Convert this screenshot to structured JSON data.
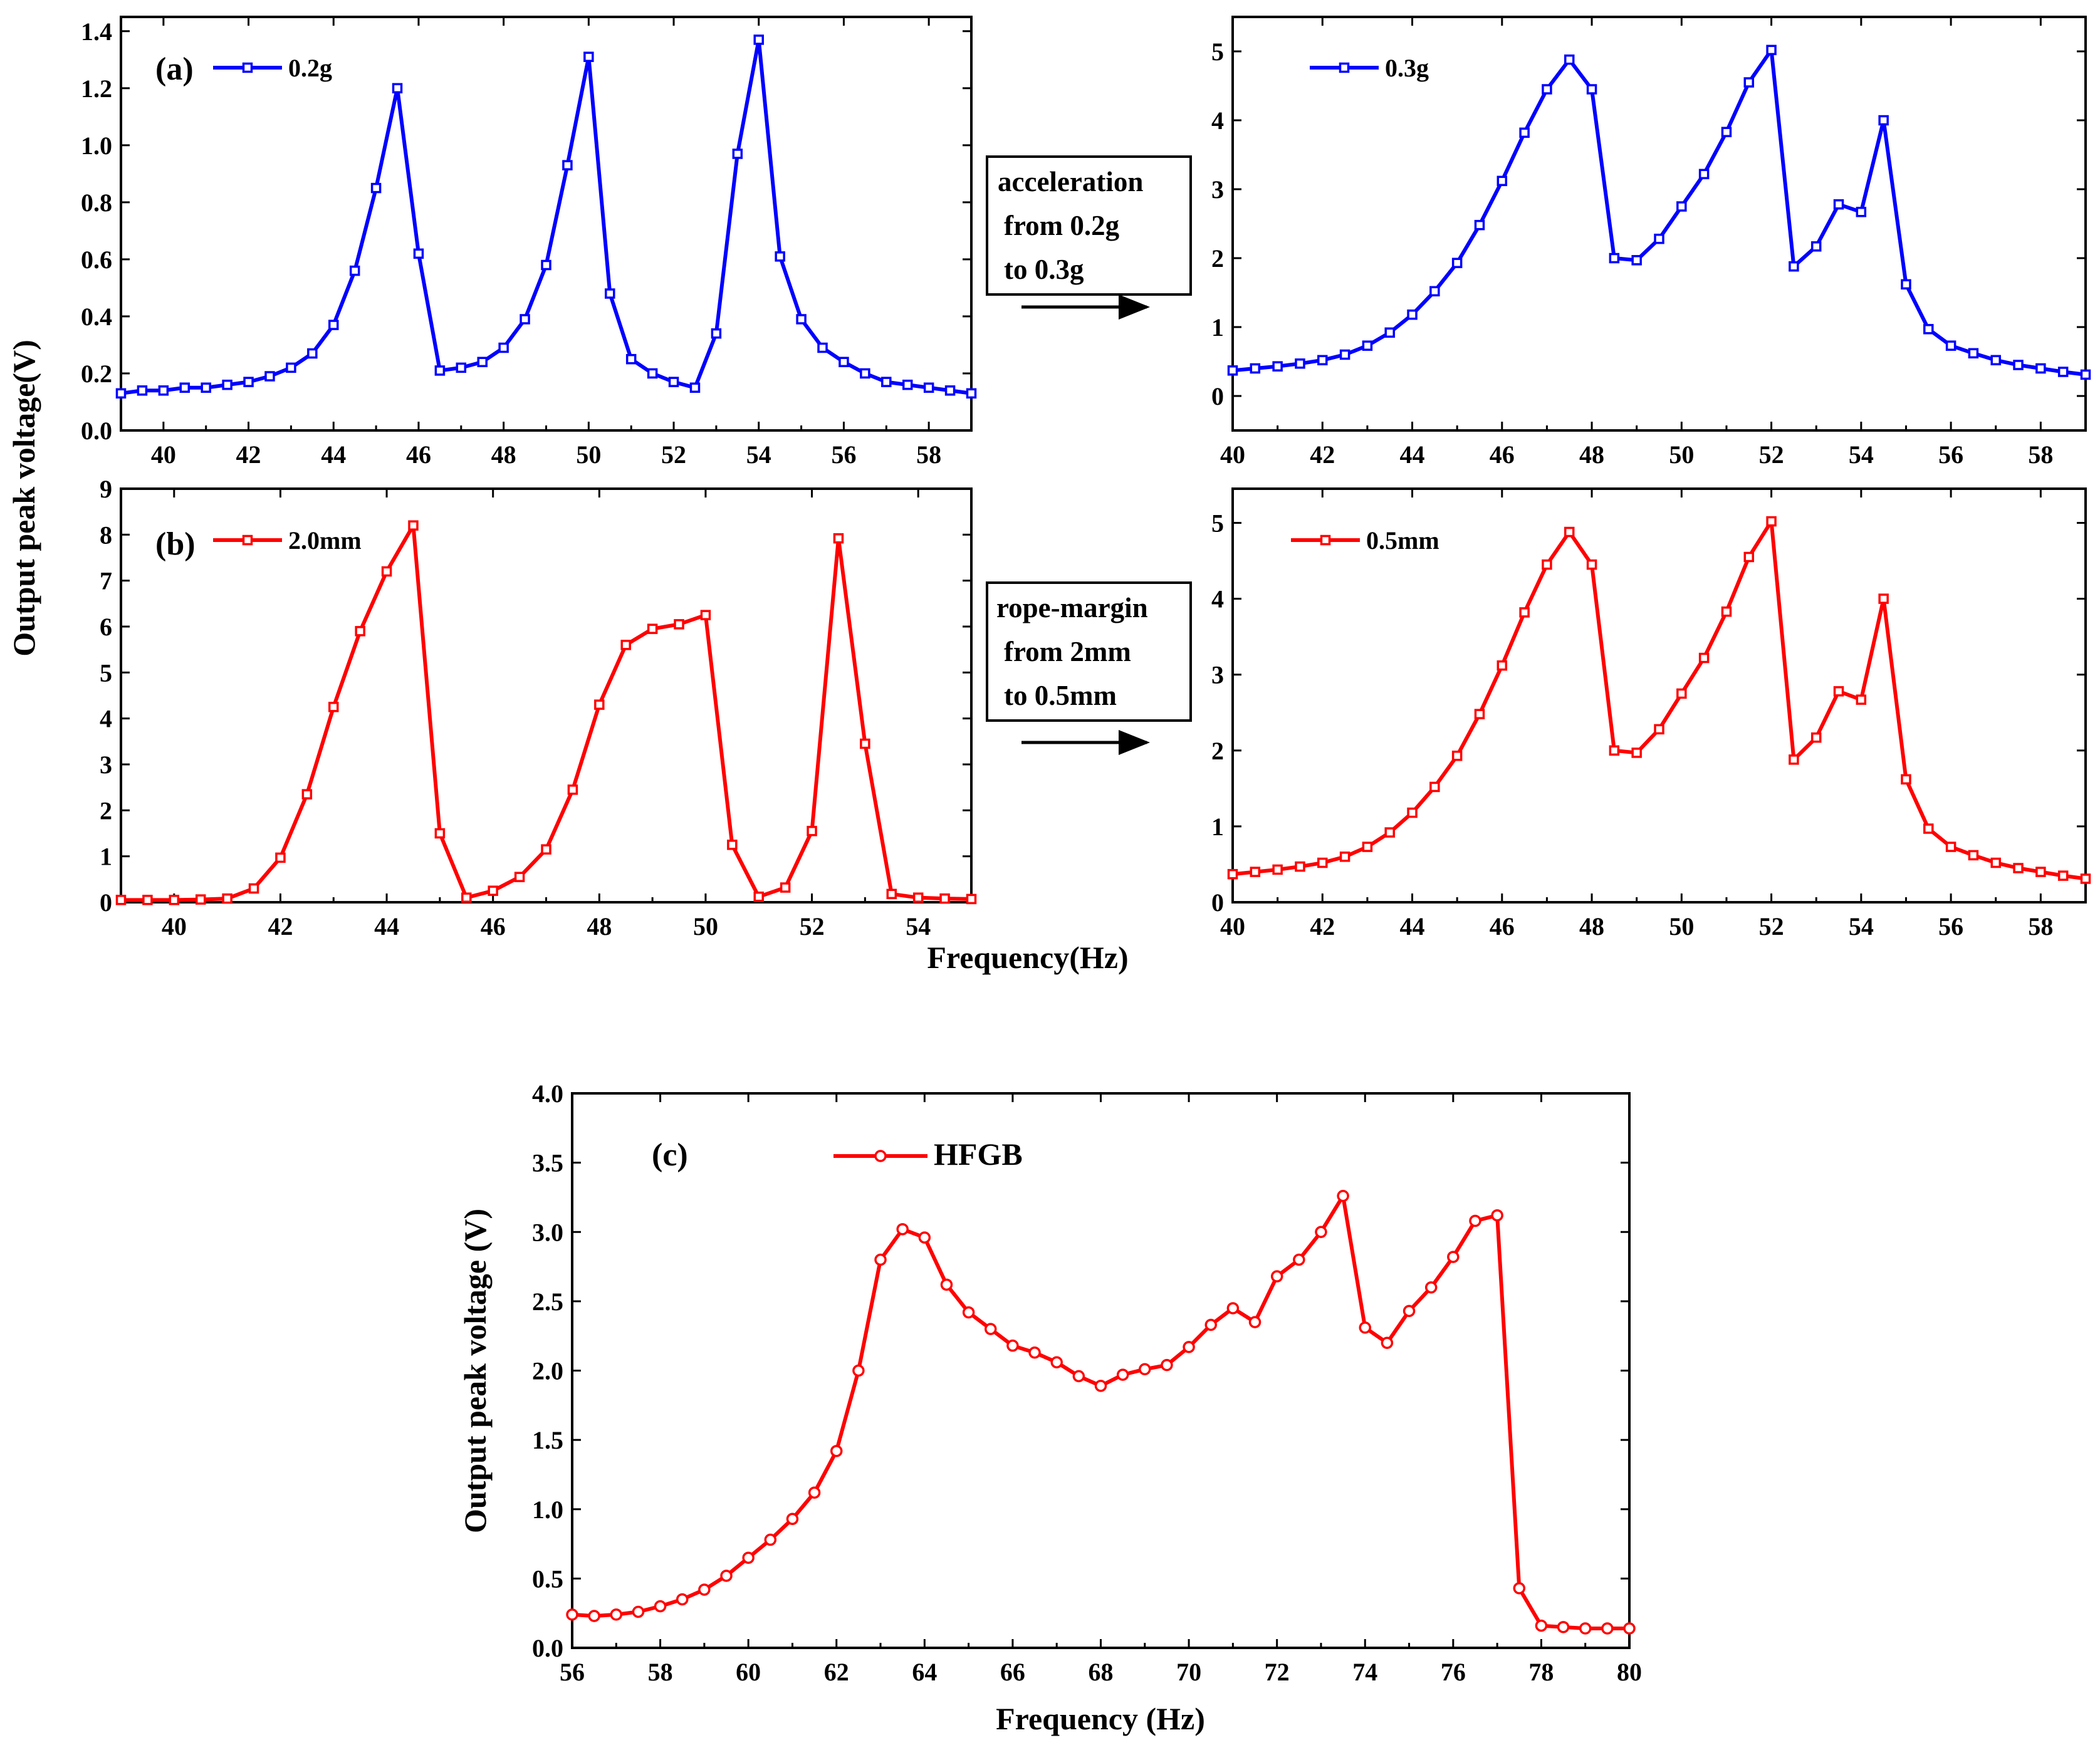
{
  "figure": {
    "shared_ylabel": "Output peak voltage(V)",
    "shared_xlabel": "Frequency(Hz)",
    "annotation_a": {
      "lines": [
        "acceleration",
        "from 0.2g",
        "to 0.3g"
      ]
    },
    "annotation_b": {
      "lines": [
        "rope-margin",
        "from 2mm",
        "to 0.5mm"
      ]
    }
  },
  "chart_data": [
    {
      "id": "a_left",
      "type": "line",
      "panel_label": "(a)",
      "marker": "square",
      "color": "#0000ff",
      "xlim": [
        39,
        59
      ],
      "ylim": [
        0,
        1.45
      ],
      "xticks": [
        40,
        42,
        44,
        46,
        48,
        50,
        52,
        54,
        56,
        58
      ],
      "yticks": [
        0,
        0.2,
        0.4,
        0.6,
        0.8,
        1.0,
        1.2,
        1.4
      ],
      "ytick_labels": [
        "0.0",
        "0.2",
        "0.4",
        "0.6",
        "0.8",
        "1.0",
        "1.2",
        "1.4"
      ],
      "series": [
        {
          "name": "0.2g",
          "x": [
            39,
            39.5,
            40,
            40.5,
            41,
            41.5,
            42,
            42.5,
            43,
            43.5,
            44,
            44.5,
            45,
            45.5,
            46,
            46.5,
            47,
            47.5,
            48,
            48.5,
            49,
            49.5,
            50,
            50.5,
            51,
            51.5,
            52,
            52.5,
            53,
            53.5,
            54,
            54.5,
            55,
            55.5,
            56,
            56.5,
            57,
            57.5,
            58,
            58.5,
            59
          ],
          "y": [
            0.13,
            0.14,
            0.14,
            0.15,
            0.15,
            0.16,
            0.17,
            0.19,
            0.22,
            0.27,
            0.37,
            0.56,
            0.85,
            1.2,
            0.62,
            0.21,
            0.22,
            0.24,
            0.29,
            0.39,
            0.58,
            0.93,
            1.31,
            0.48,
            0.25,
            0.2,
            0.17,
            0.15,
            0.34,
            0.97,
            1.37,
            0.61,
            0.39,
            0.29,
            0.24,
            0.2,
            0.17,
            0.16,
            0.15,
            0.14,
            0.13
          ]
        }
      ]
    },
    {
      "id": "a_right",
      "type": "line",
      "panel_label": "",
      "marker": "square",
      "color": "#0000ff",
      "xlim": [
        40,
        59
      ],
      "ylim": [
        -0.5,
        5.5
      ],
      "xticks": [
        40,
        42,
        44,
        46,
        48,
        50,
        52,
        54,
        56,
        58
      ],
      "yticks": [
        0,
        1,
        2,
        3,
        4,
        5
      ],
      "ytick_labels": [
        "0",
        "1",
        "2",
        "3",
        "4",
        "5"
      ],
      "series": [
        {
          "name": "0.3g",
          "x": [
            40,
            40.5,
            41,
            41.5,
            42,
            42.5,
            43,
            43.5,
            44,
            44.5,
            45,
            45.5,
            46,
            46.5,
            47,
            47.5,
            48,
            48.5,
            49,
            49.5,
            50,
            50.5,
            51,
            51.5,
            52,
            52.5,
            53,
            53.5,
            54,
            54.5,
            55,
            55.5,
            56,
            56.5,
            57,
            57.5,
            58,
            58.5,
            59
          ],
          "y": [
            0.37,
            0.4,
            0.43,
            0.47,
            0.52,
            0.6,
            0.73,
            0.92,
            1.18,
            1.52,
            1.93,
            2.48,
            3.12,
            3.82,
            4.45,
            4.88,
            4.45,
            2.0,
            1.97,
            2.28,
            2.75,
            3.22,
            3.83,
            4.55,
            5.02,
            1.88,
            2.17,
            2.78,
            2.67,
            4.0,
            1.62,
            0.97,
            0.73,
            0.62,
            0.52,
            0.45,
            0.4,
            0.35,
            0.31
          ]
        }
      ]
    },
    {
      "id": "b_left",
      "type": "line",
      "panel_label": "(b)",
      "marker": "square",
      "color": "#ff0000",
      "xlim": [
        39,
        55
      ],
      "ylim": [
        0,
        9
      ],
      "xticks": [
        40,
        42,
        44,
        46,
        48,
        50,
        52,
        54
      ],
      "yticks": [
        0,
        1,
        2,
        3,
        4,
        5,
        6,
        7,
        8,
        9
      ],
      "ytick_labels": [
        "0",
        "1",
        "2",
        "3",
        "4",
        "5",
        "6",
        "7",
        "8",
        "9"
      ],
      "series": [
        {
          "name": "2.0mm",
          "x": [
            39,
            39.5,
            40,
            40.5,
            41,
            41.5,
            42,
            42.5,
            43,
            43.5,
            44,
            44.5,
            45,
            45.5,
            46,
            46.5,
            47,
            47.5,
            48,
            48.5,
            49,
            49.5,
            50,
            50.5,
            51,
            51.5,
            52,
            52.5,
            53,
            53.5,
            54,
            54.5,
            55
          ],
          "y": [
            0.05,
            0.05,
            0.05,
            0.06,
            0.08,
            0.3,
            0.97,
            2.35,
            4.25,
            5.9,
            7.2,
            8.2,
            1.5,
            0.1,
            0.25,
            0.55,
            1.15,
            2.45,
            4.3,
            5.6,
            5.95,
            6.05,
            6.25,
            1.25,
            0.12,
            0.32,
            1.55,
            7.92,
            3.45,
            0.18,
            0.1,
            0.08,
            0.07
          ]
        }
      ]
    },
    {
      "id": "b_right",
      "type": "line",
      "panel_label": "",
      "marker": "square",
      "color": "#ff0000",
      "xlim": [
        40,
        59
      ],
      "ylim": [
        0,
        5.45
      ],
      "xticks": [
        40,
        42,
        44,
        46,
        48,
        50,
        52,
        54,
        56,
        58
      ],
      "yticks": [
        0,
        1,
        2,
        3,
        4,
        5
      ],
      "ytick_labels": [
        "0",
        "1",
        "2",
        "3",
        "4",
        "5"
      ],
      "series": [
        {
          "name": "0.5mm",
          "x": [
            40,
            40.5,
            41,
            41.5,
            42,
            42.5,
            43,
            43.5,
            44,
            44.5,
            45,
            45.5,
            46,
            46.5,
            47,
            47.5,
            48,
            48.5,
            49,
            49.5,
            50,
            50.5,
            51,
            51.5,
            52,
            52.5,
            53,
            53.5,
            54,
            54.5,
            55,
            55.5,
            56,
            56.5,
            57,
            57.5,
            58,
            58.5,
            59
          ],
          "y": [
            0.37,
            0.4,
            0.43,
            0.47,
            0.52,
            0.6,
            0.73,
            0.92,
            1.18,
            1.52,
            1.93,
            2.48,
            3.12,
            3.82,
            4.45,
            4.88,
            4.45,
            2.0,
            1.97,
            2.28,
            2.75,
            3.22,
            3.83,
            4.55,
            5.02,
            1.88,
            2.17,
            2.78,
            2.67,
            4.0,
            1.62,
            0.97,
            0.73,
            0.62,
            0.52,
            0.45,
            0.4,
            0.35,
            0.31
          ]
        }
      ]
    },
    {
      "id": "c",
      "type": "line",
      "panel_label": "(c)",
      "marker": "circle",
      "color": "#ff0000",
      "xlim": [
        56,
        80
      ],
      "ylim": [
        0,
        4.0
      ],
      "xticks": [
        56,
        58,
        60,
        62,
        64,
        66,
        68,
        70,
        72,
        74,
        76,
        78,
        80
      ],
      "yticks": [
        0,
        0.5,
        1.0,
        1.5,
        2.0,
        2.5,
        3.0,
        3.5,
        4.0
      ],
      "ytick_labels": [
        "0.0",
        "0.5",
        "1.0",
        "1.5",
        "2.0",
        "2.5",
        "3.0",
        "3.5",
        "4.0"
      ],
      "xlabel": "Frequency (Hz)",
      "ylabel": "Output peak voltage (V)",
      "series": [
        {
          "name": "HFGB",
          "x": [
            56,
            56.5,
            57,
            57.5,
            58,
            58.5,
            59,
            59.5,
            60,
            60.5,
            61,
            61.5,
            62,
            62.5,
            63,
            63.5,
            64,
            64.5,
            65,
            65.5,
            66,
            66.5,
            67,
            67.5,
            68,
            68.5,
            69,
            69.5,
            70,
            70.5,
            71,
            71.5,
            72,
            72.5,
            73,
            73.5,
            74,
            74.5,
            75,
            75.5,
            76,
            76.5,
            77,
            77.5,
            78,
            78.5,
            79,
            79.5,
            80
          ],
          "y": [
            0.24,
            0.23,
            0.24,
            0.26,
            0.3,
            0.35,
            0.42,
            0.52,
            0.65,
            0.78,
            0.93,
            1.12,
            1.42,
            2.0,
            2.8,
            3.02,
            2.96,
            2.62,
            2.42,
            2.3,
            2.18,
            2.13,
            2.06,
            1.96,
            1.89,
            1.97,
            2.01,
            2.04,
            2.17,
            2.33,
            2.45,
            2.35,
            2.68,
            2.8,
            3.0,
            3.26,
            2.31,
            2.2,
            2.43,
            2.6,
            2.82,
            3.08,
            3.12,
            0.43,
            0.16,
            0.15,
            0.14,
            0.14,
            0.14
          ]
        }
      ]
    }
  ]
}
